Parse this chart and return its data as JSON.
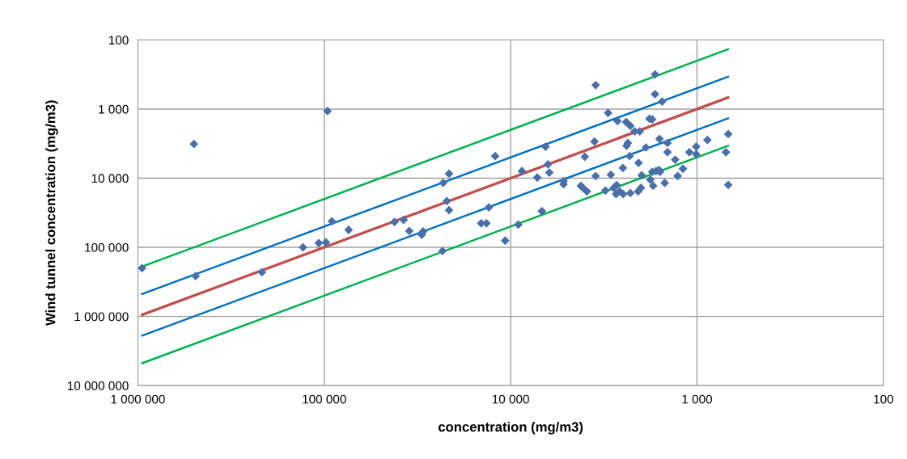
{
  "chart_data": {
    "type": "scatter",
    "xlabel": "concentration (mg/m3)",
    "ylabel": "Wind tunnel concentration (mg/m3)",
    "log": "xy",
    "grid": true,
    "xlim": [
      1000000,
      100
    ],
    "ylim": [
      10000000,
      100
    ],
    "xticks": [
      {
        "value": 1000000,
        "label": "1 000 000"
      },
      {
        "value": 100000,
        "label": "100 000"
      },
      {
        "value": 10000,
        "label": "10 000"
      },
      {
        "value": 1000,
        "label": "1 000"
      },
      {
        "value": 100,
        "label": "100"
      }
    ],
    "yticks": [
      {
        "value": 100,
        "label": "100"
      },
      {
        "value": 1000,
        "label": "1 000"
      },
      {
        "value": 10000,
        "label": "10 000"
      },
      {
        "value": 100000,
        "label": "100 000"
      },
      {
        "value": 1000000,
        "label": "1 000 000"
      },
      {
        "value": 10000000,
        "label": "10 000 000"
      }
    ],
    "series": [
      {
        "type": "line",
        "color": "#00b050",
        "x": [
          950000,
          680
        ],
        "values": [
          190000,
          136
        ]
      },
      {
        "type": "line",
        "color": "#0070c0",
        "x": [
          950000,
          680
        ],
        "values": [
          475000,
          340
        ]
      },
      {
        "type": "line",
        "color": "#c0504d",
        "x": [
          950000,
          680
        ],
        "values": [
          950000,
          680
        ]
      },
      {
        "type": "line",
        "color": "#0070c0",
        "x": [
          950000,
          680
        ],
        "values": [
          1900000,
          1360
        ]
      },
      {
        "type": "line",
        "color": "#00b050",
        "x": [
          950000,
          680
        ],
        "values": [
          4750000,
          3400
        ]
      },
      {
        "marker": "diamond",
        "color": "#4a6fa8",
        "x": [
          950000,
          500000,
          490000,
          216000,
          96000,
          130000,
          107000,
          98000,
          91000,
          74000,
          42000,
          37500,
          35000,
          30000,
          29500,
          23200,
          23000,
          21400,
          22000,
          21400,
          14400,
          13500,
          13100,
          12100,
          10700,
          9100,
          8700,
          7200,
          6800,
          6500,
          6300,
          6200,
          5200,
          5200,
          4200,
          4100,
          3900,
          4000,
          3500,
          3550,
          3500,
          3100,
          3000,
          2900,
          2800,
          2670,
          2700,
          2720,
          2600,
          2500,
          2490,
          2400,
          2390,
          2350,
          2300,
          2280,
          2280,
          2160,
          2070,
          2060,
          2030,
          2000,
          1980,
          1880,
          1800,
          1740,
          1780,
          1740,
          1720,
          1680,
          1680,
          1540,
          1590,
          1440,
          1440,
          1660,
          1600,
          1580,
          1490,
          1310,
          1270,
          1190,
          1100,
          1010,
          1010,
          880,
          680,
          700,
          680
        ],
        "values": [
          200000,
          3200,
          260000,
          230000,
          1070,
          100000,
          87000,
          85000,
          42000,
          56000,
          43000,
          40000,
          58000,
          66000,
          59000,
          113000,
          11700,
          8600,
          21400,
          29000,
          45000,
          45000,
          26500,
          4800,
          80000,
          47000,
          7900,
          9800,
          30000,
          3500,
          6300,
          8300,
          11000,
          12200,
          12900,
          13800,
          15500,
          4900,
          450,
          2950,
          9300,
          15100,
          1140,
          8900,
          13800,
          1490,
          12600,
          17000,
          15500,
          7100,
          17000,
          1540,
          3400,
          3100,
          4800,
          1750,
          16400,
          2100,
          15500,
          6000,
          2100,
          13800,
          9100,
          3600,
          1380,
          1410,
          10500,
          8100,
          12900,
          315,
          610,
          780,
          2700,
          3100,
          4200,
          7900,
          7600,
          8100,
          11700,
          5400,
          9300,
          7300,
          4200,
          3500,
          4500,
          2800,
          2300,
          4200,
          12500
        ]
      }
    ]
  }
}
